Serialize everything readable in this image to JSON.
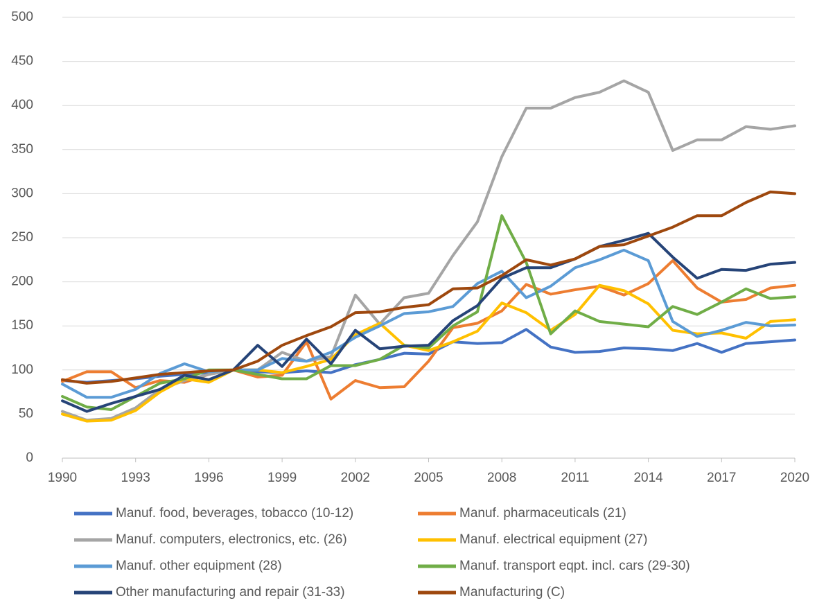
{
  "chart_data": {
    "type": "line",
    "x": [
      1990,
      1991,
      1992,
      1993,
      1994,
      1995,
      1996,
      1997,
      1998,
      1999,
      2000,
      2001,
      2002,
      2003,
      2004,
      2005,
      2006,
      2007,
      2008,
      2009,
      2010,
      2011,
      2012,
      2013,
      2014,
      2015,
      2016,
      2017,
      2018,
      2019,
      2020
    ],
    "xlim": [
      1990,
      2020
    ],
    "xticks": [
      1990,
      1993,
      1996,
      1999,
      2002,
      2005,
      2008,
      2011,
      2014,
      2017,
      2020
    ],
    "ylim": [
      0,
      500
    ],
    "yticks": [
      0,
      50,
      100,
      150,
      200,
      250,
      300,
      350,
      400,
      450,
      500
    ],
    "grid": true,
    "legend": "bottom",
    "series": [
      {
        "name": "Manuf. food, beverages, tobacco (10-12)",
        "color": "#4472c4",
        "values": [
          88,
          86,
          88,
          90,
          93,
          95,
          97,
          100,
          98,
          97,
          99,
          97,
          106,
          112,
          119,
          118,
          132,
          130,
          131,
          146,
          126,
          120,
          121,
          125,
          124,
          122,
          130,
          120,
          130,
          132,
          134
        ]
      },
      {
        "name": "Manuf. pharmaceuticals (21)",
        "color": "#ed7d31",
        "values": [
          87,
          98,
          98,
          80,
          88,
          86,
          95,
          100,
          92,
          94,
          132,
          67,
          88,
          80,
          81,
          110,
          148,
          153,
          167,
          197,
          186,
          191,
          195,
          185,
          198,
          224,
          193,
          177,
          180,
          193,
          196
        ]
      },
      {
        "name": "Manuf. computers, electronics, etc. (26)",
        "color": "#a5a5a5",
        "values": [
          53,
          43,
          45,
          57,
          78,
          88,
          95,
          100,
          100,
          120,
          110,
          115,
          185,
          152,
          182,
          187,
          230,
          268,
          342,
          397,
          397,
          409,
          415,
          428,
          415,
          349,
          361,
          361,
          376,
          373,
          377
        ]
      },
      {
        "name": "Manuf. electrical equipment (27)",
        "color": "#ffc000",
        "values": [
          50,
          42,
          43,
          54,
          75,
          90,
          86,
          100,
          100,
          97,
          104,
          112,
          140,
          153,
          128,
          122,
          132,
          144,
          176,
          165,
          145,
          163,
          196,
          190,
          175,
          145,
          141,
          142,
          136,
          155,
          157
        ]
      },
      {
        "name": "Manuf. other equipment (28)",
        "color": "#5b9bd5",
        "values": [
          84,
          69,
          69,
          78,
          96,
          107,
          98,
          100,
          100,
          113,
          110,
          120,
          137,
          150,
          164,
          166,
          172,
          198,
          212,
          182,
          195,
          216,
          225,
          236,
          224,
          155,
          138,
          145,
          154,
          150,
          151
        ]
      },
      {
        "name": "Manuf. transport eqpt. incl. cars (29-30)",
        "color": "#70ad47",
        "values": [
          70,
          58,
          55,
          70,
          85,
          90,
          100,
          100,
          95,
          90,
          90,
          105,
          105,
          112,
          128,
          125,
          150,
          166,
          275,
          222,
          141,
          167,
          155,
          152,
          149,
          172,
          163,
          177,
          192,
          181,
          183
        ]
      },
      {
        "name": "Other manufacturing and repair (31-33)",
        "color": "#264478",
        "values": [
          65,
          53,
          62,
          70,
          78,
          94,
          89,
          100,
          128,
          104,
          135,
          107,
          145,
          124,
          127,
          128,
          156,
          173,
          204,
          216,
          216,
          226,
          240,
          247,
          255,
          228,
          204,
          214,
          213,
          220,
          222
        ]
      },
      {
        "name": "Manufacturing (C)",
        "color": "#9e480e",
        "values": [
          89,
          85,
          87,
          91,
          95,
          97,
          99,
          100,
          110,
          128,
          139,
          149,
          165,
          166,
          171,
          174,
          192,
          193,
          207,
          225,
          219,
          226,
          240,
          242,
          252,
          262,
          275,
          275,
          290,
          302,
          300
        ]
      }
    ]
  }
}
